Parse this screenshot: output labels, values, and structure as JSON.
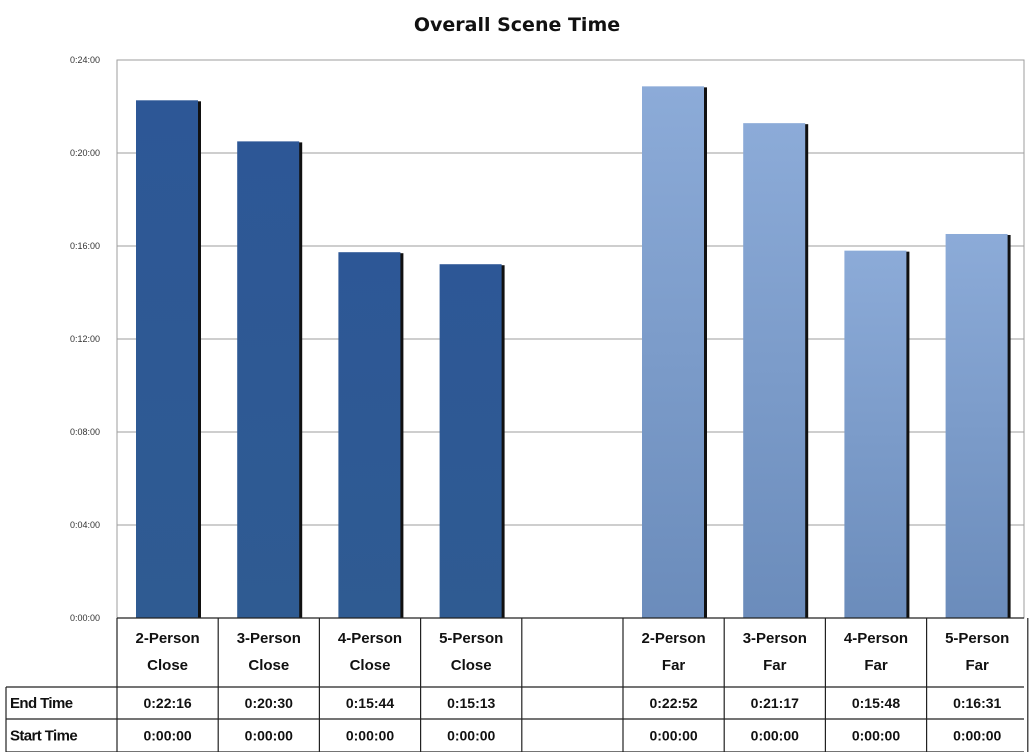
{
  "chart_data": {
    "type": "bar",
    "title": "Overall Scene Time",
    "xlabel": "",
    "ylabel": "",
    "ylim": [
      "0:00:00",
      "0:24:00"
    ],
    "y_ticks": [
      "0:00:00",
      "0:04:00",
      "0:08:00",
      "0:12:00",
      "0:16:00",
      "0:20:00",
      "0:24:00"
    ],
    "grid": true,
    "legend": "none",
    "categories": [
      [
        "2-Person",
        "Close"
      ],
      [
        "3-Person",
        "Close"
      ],
      [
        "4-Person",
        "Close"
      ],
      [
        "5-Person",
        "Close"
      ],
      [
        "",
        ""
      ],
      [
        "2-Person",
        "Far"
      ],
      [
        "3-Person",
        "Far"
      ],
      [
        "4-Person",
        "Far"
      ],
      [
        "5-Person",
        "Far"
      ]
    ],
    "table_rows": [
      {
        "label": "End Time",
        "values": [
          "0:22:16",
          "0:20:30",
          "0:15:44",
          "0:15:13",
          "",
          "0:22:52",
          "0:21:17",
          "0:15:48",
          "0:16:31"
        ]
      },
      {
        "label": "Start Time",
        "values": [
          "0:00:00",
          "0:00:00",
          "0:00:00",
          "0:00:00",
          "",
          "0:00:00",
          "0:00:00",
          "0:00:00",
          "0:00:00"
        ]
      }
    ],
    "colors": {
      "close": "#2e5a93",
      "far": "#86a6d3",
      "grid": "#9e9e9e",
      "table_border": "#222222"
    }
  }
}
